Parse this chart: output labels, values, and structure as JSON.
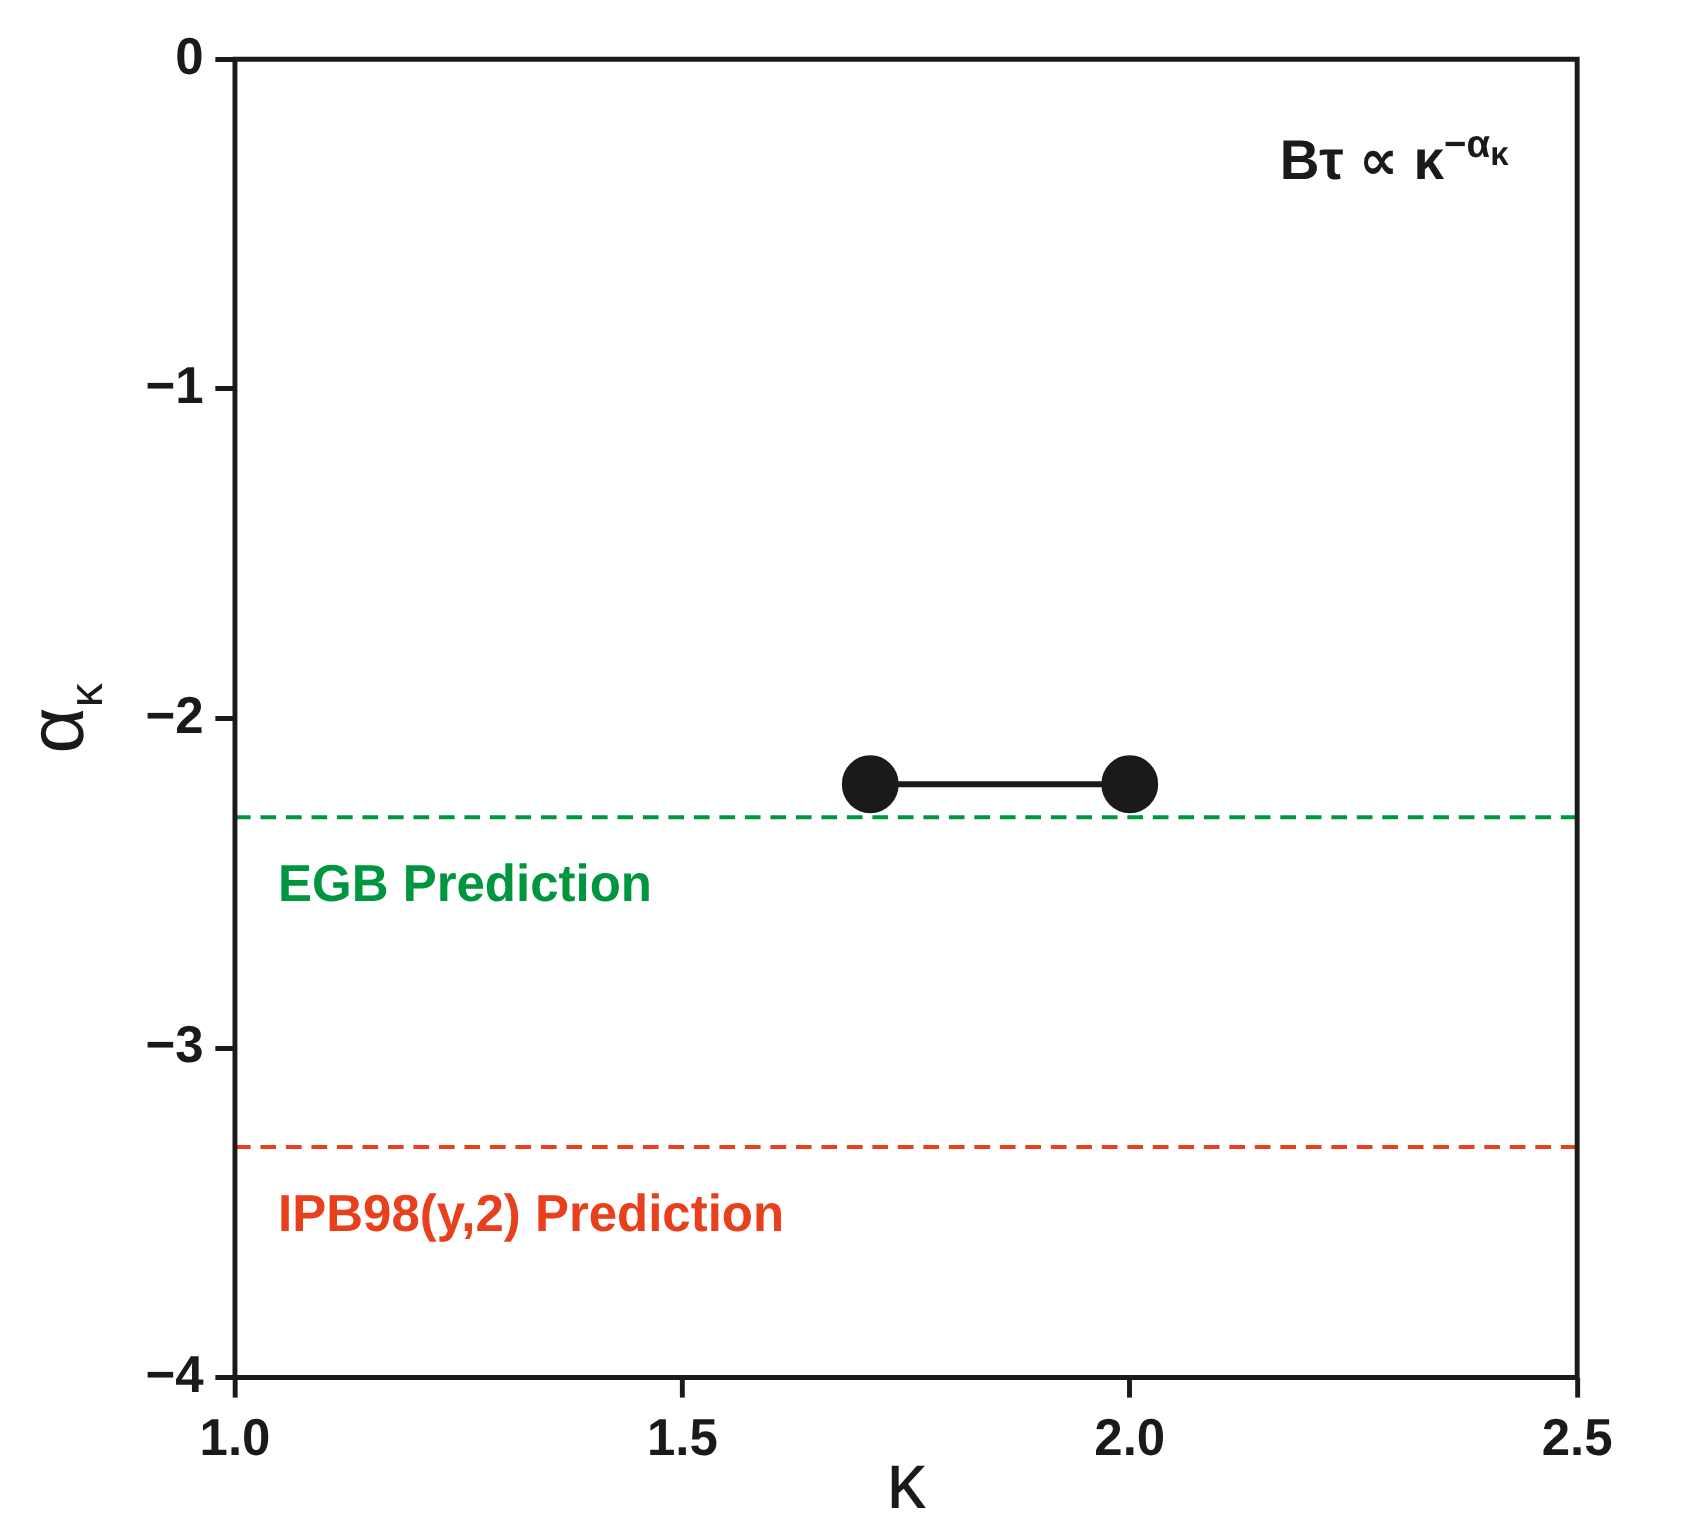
{
  "chart_data": {
    "type": "line",
    "xlabel": "κ",
    "ylabel": "α$_{κ}$",
    "annotations": [
      "Bτ ∝ κ$^{−α}$$_{κ}$"
    ],
    "series": [
      {
        "color": "#1a1a1a",
        "x": [
          1.71,
          2.0
        ],
        "values": [
          -2.2,
          -2.2
        ]
      }
    ],
    "marker": "circle",
    "grid": false,
    "legend": false,
    "xlim": [
      1.0,
      2.5
    ],
    "xticks": [
      {
        "value": 1.0,
        "label": "1.0"
      },
      {
        "value": 1.5,
        "label": "1.5"
      },
      {
        "value": 2.0,
        "label": "2.0"
      },
      {
        "value": 2.5,
        "label": "2.5"
      }
    ],
    "ylim": [
      -4,
      0
    ],
    "yticks": [
      {
        "value": 0,
        "label": "0"
      },
      {
        "value": -1,
        "label": "−1"
      },
      {
        "value": -2,
        "label": "−2"
      },
      {
        "value": -3,
        "label": "−3"
      },
      {
        "value": -4,
        "label": "−4"
      }
    ],
    "ref_lines": [
      {
        "axis": "y",
        "value": -2.3,
        "label": "EGB Prediction",
        "color": "#009640",
        "line_style": "dashed"
      },
      {
        "axis": "y",
        "value": -3.3,
        "label": "IPB98(y,2) Prediction",
        "color": "#e8401c",
        "line_style": "dashed"
      }
    ]
  }
}
